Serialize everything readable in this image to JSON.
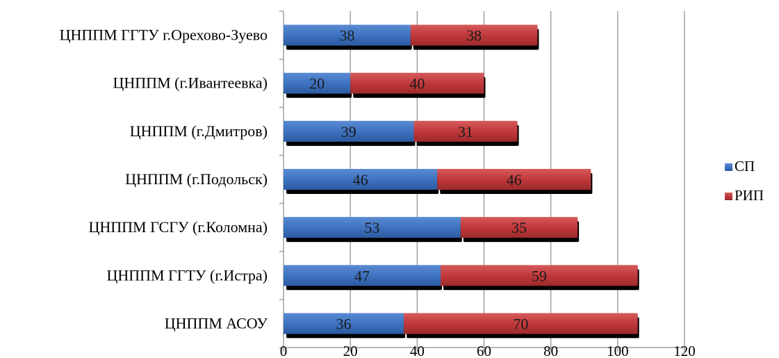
{
  "chart_data": {
    "type": "bar",
    "orientation": "horizontal",
    "stacked": true,
    "categories": [
      "ЦНППМ ГГТУ г.Орехово-Зуево",
      "ЦНППМ (г.Ивантеевка)",
      "ЦНППМ (г.Дмитров)",
      "ЦНППМ (г.Подольск)",
      "ЦНППМ ГСГУ (г.Коломна)",
      "ЦНППМ ГГТУ (г.Истра)",
      "ЦНППМ АСОУ"
    ],
    "series": [
      {
        "name": "СП",
        "color": "#3f73c0",
        "values": [
          38,
          20,
          39,
          46,
          53,
          47,
          36
        ]
      },
      {
        "name": "РИП",
        "color": "#c0393b",
        "values": [
          38,
          40,
          31,
          46,
          35,
          59,
          70
        ]
      }
    ],
    "xlim": [
      0,
      120
    ],
    "xticks": [
      0,
      20,
      40,
      60,
      80,
      100,
      120
    ],
    "grid": true,
    "legend_position": "right"
  }
}
